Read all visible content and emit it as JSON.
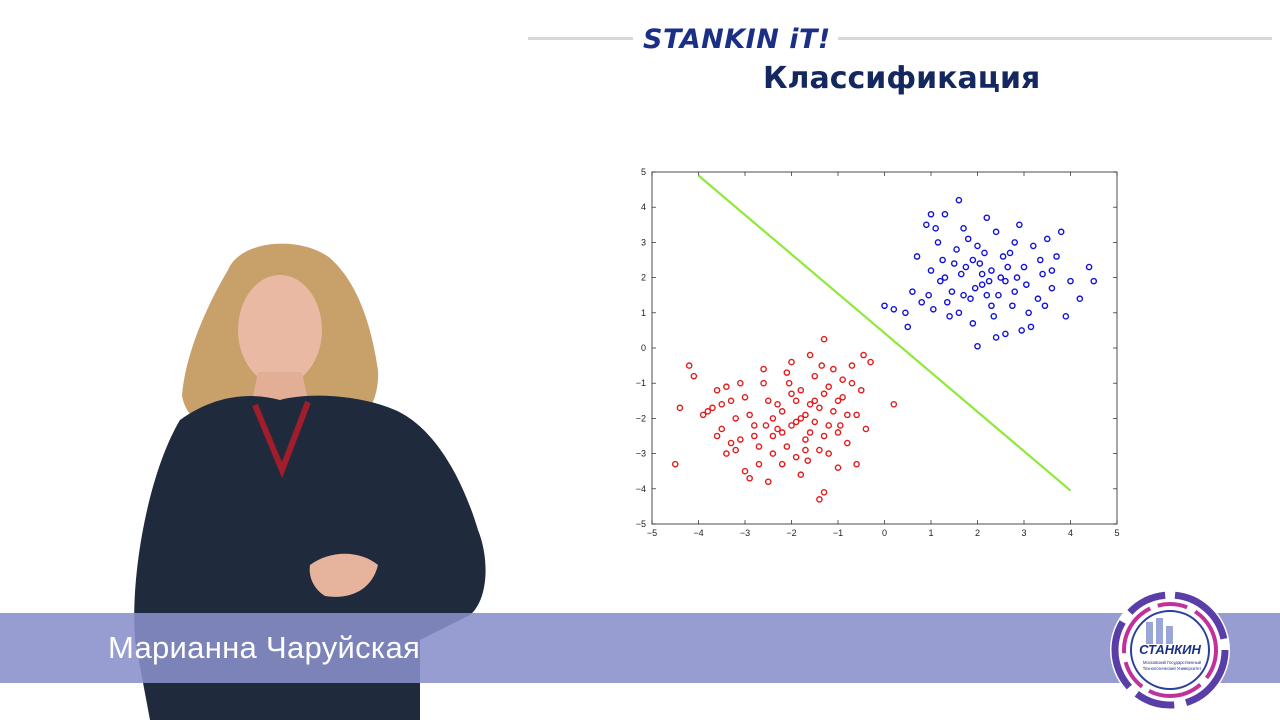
{
  "header": {
    "brand": "STANKIN iT!",
    "title": "Классификация"
  },
  "lower_third": {
    "speaker_name": "Марианна Чаруйская"
  },
  "logo": {
    "name": "СТАНКИН",
    "subtitle_lines": [
      "Московский Государственный",
      "Технологический Университет"
    ]
  },
  "colors": {
    "brand": "#1c2f86",
    "class_red": "#e41a1c",
    "class_blue": "#1010d8",
    "boundary": "#8fe83a",
    "band": "#8a8fcb"
  },
  "chart_data": {
    "type": "scatter",
    "title": "",
    "xlabel": "",
    "ylabel": "",
    "xlim": [
      -5,
      5
    ],
    "ylim": [
      -5,
      5
    ],
    "x_ticks": [
      -5,
      -4,
      -3,
      -2,
      -1,
      0,
      1,
      2,
      3,
      4,
      5
    ],
    "y_ticks": [
      -5,
      -4,
      -3,
      -2,
      -1,
      0,
      1,
      2,
      3,
      4,
      5
    ],
    "grid": false,
    "series": [
      {
        "color": "#e41a1c",
        "marker": "circle-open",
        "points": [
          [
            -4.2,
            -0.5
          ],
          [
            -4.1,
            -0.8
          ],
          [
            -4.4,
            -1.7
          ],
          [
            -4.5,
            -3.3
          ],
          [
            -3.9,
            -1.9
          ],
          [
            -3.8,
            -1.8
          ],
          [
            -3.7,
            -1.7
          ],
          [
            -3.6,
            -1.2
          ],
          [
            -3.5,
            -1.6
          ],
          [
            -3.4,
            -1.1
          ],
          [
            -3.3,
            -1.5
          ],
          [
            -3.2,
            -2.0
          ],
          [
            -3.1,
            -2.6
          ],
          [
            -3.0,
            -3.5
          ],
          [
            -2.9,
            -3.7
          ],
          [
            -2.7,
            -3.3
          ],
          [
            -2.5,
            -3.8
          ],
          [
            -2.4,
            -2.5
          ],
          [
            -2.3,
            -2.3
          ],
          [
            -2.2,
            -1.8
          ],
          [
            -2.1,
            -0.7
          ],
          [
            -2.0,
            -1.3
          ],
          [
            -1.9,
            -2.1
          ],
          [
            -1.8,
            -3.6
          ],
          [
            -1.7,
            -2.9
          ],
          [
            -1.6,
            -0.2
          ],
          [
            -1.5,
            -1.5
          ],
          [
            -1.4,
            -4.3
          ],
          [
            -1.3,
            -4.1
          ],
          [
            -1.2,
            -1.1
          ],
          [
            -1.1,
            -0.6
          ],
          [
            -1.0,
            -2.4
          ],
          [
            -0.9,
            -1.4
          ],
          [
            -0.8,
            -2.7
          ],
          [
            -0.7,
            -0.5
          ],
          [
            -0.6,
            -1.9
          ],
          [
            -0.5,
            -1.2
          ],
          [
            -0.4,
            -2.3
          ],
          [
            -0.3,
            -0.4
          ],
          [
            0.2,
            -1.6
          ],
          [
            -1.3,
            0.25
          ],
          [
            -2.8,
            -2.2
          ],
          [
            -3.0,
            -1.4
          ],
          [
            -2.6,
            -1.0
          ],
          [
            -2.3,
            -1.6
          ],
          [
            -2.1,
            -2.8
          ],
          [
            -1.9,
            -1.5
          ],
          [
            -1.7,
            -1.9
          ],
          [
            -1.6,
            -2.4
          ],
          [
            -1.5,
            -2.1
          ],
          [
            -1.4,
            -1.7
          ],
          [
            -1.3,
            -2.5
          ],
          [
            -1.2,
            -2.2
          ],
          [
            -1.1,
            -1.8
          ],
          [
            -2.4,
            -2.0
          ],
          [
            -2.2,
            -2.4
          ],
          [
            -2.0,
            -2.2
          ],
          [
            -1.8,
            -2.0
          ],
          [
            -1.6,
            -1.6
          ],
          [
            -1.4,
            -2.9
          ],
          [
            -2.5,
            -1.5
          ],
          [
            -2.7,
            -2.8
          ],
          [
            -3.3,
            -2.7
          ],
          [
            -3.5,
            -2.3
          ],
          [
            -2.9,
            -1.9
          ],
          [
            -1.0,
            -1.5
          ],
          [
            -0.8,
            -1.9
          ],
          [
            -1.7,
            -2.6
          ],
          [
            -1.9,
            -3.1
          ],
          [
            -2.2,
            -3.3
          ],
          [
            -3.4,
            -3.0
          ],
          [
            -3.6,
            -2.5
          ],
          [
            -1.2,
            -3.0
          ],
          [
            -1.0,
            -3.4
          ],
          [
            -0.6,
            -3.3
          ],
          [
            -0.7,
            -1.0
          ],
          [
            -2.6,
            -0.6
          ],
          [
            -3.1,
            -1.0
          ],
          [
            -2.0,
            -0.4
          ],
          [
            -1.5,
            -0.8
          ],
          [
            -0.9,
            -0.9
          ],
          [
            -2.8,
            -2.5
          ],
          [
            -2.4,
            -3.0
          ],
          [
            -1.8,
            -1.2
          ],
          [
            -1.3,
            -1.3
          ],
          [
            -0.95,
            -2.2
          ],
          [
            -1.65,
            -3.2
          ],
          [
            -2.05,
            -1.0
          ],
          [
            -3.2,
            -2.9
          ],
          [
            -2.55,
            -2.2
          ],
          [
            -1.35,
            -0.5
          ],
          [
            -0.45,
            -0.2
          ]
        ]
      },
      {
        "color": "#1010d8",
        "marker": "circle-open",
        "points": [
          [
            0,
            1.2
          ],
          [
            0.2,
            1.1
          ],
          [
            0.45,
            1.0
          ],
          [
            0.5,
            0.6
          ],
          [
            0.6,
            1.6
          ],
          [
            0.7,
            2.6
          ],
          [
            0.8,
            1.3
          ],
          [
            0.9,
            3.5
          ],
          [
            1.0,
            2.2
          ],
          [
            1.1,
            3.4
          ],
          [
            1.2,
            1.9
          ],
          [
            1.3,
            3.8
          ],
          [
            1.4,
            0.9
          ],
          [
            1.5,
            2.4
          ],
          [
            1.6,
            4.2
          ],
          [
            1.7,
            1.5
          ],
          [
            1.8,
            3.1
          ],
          [
            1.9,
            0.7
          ],
          [
            2.0,
            2.9
          ],
          [
            2.1,
            1.8
          ],
          [
            2.2,
            3.7
          ],
          [
            2.3,
            1.2
          ],
          [
            2.4,
            3.3
          ],
          [
            2.5,
            2.0
          ],
          [
            2.6,
            0.4
          ],
          [
            2.7,
            2.7
          ],
          [
            2.8,
            1.6
          ],
          [
            2.9,
            3.5
          ],
          [
            3.0,
            2.3
          ],
          [
            3.1,
            1.0
          ],
          [
            3.2,
            2.9
          ],
          [
            3.3,
            1.4
          ],
          [
            3.4,
            2.1
          ],
          [
            3.5,
            3.1
          ],
          [
            3.6,
            1.7
          ],
          [
            3.7,
            2.6
          ],
          [
            3.8,
            3.3
          ],
          [
            3.9,
            0.9
          ],
          [
            4.0,
            1.9
          ],
          [
            4.2,
            1.4
          ],
          [
            4.4,
            2.3
          ],
          [
            4.5,
            1.9
          ],
          [
            1.05,
            1.1
          ],
          [
            1.25,
            2.5
          ],
          [
            1.45,
            1.6
          ],
          [
            1.65,
            2.1
          ],
          [
            1.85,
            1.4
          ],
          [
            2.05,
            2.4
          ],
          [
            2.25,
            1.9
          ],
          [
            2.45,
            1.5
          ],
          [
            2.65,
            2.3
          ],
          [
            2.85,
            2.0
          ],
          [
            3.05,
            1.8
          ],
          [
            1.55,
            2.8
          ],
          [
            2.15,
            2.7
          ],
          [
            2.35,
            0.9
          ],
          [
            1.35,
            1.3
          ],
          [
            1.95,
            1.7
          ],
          [
            2.55,
            2.6
          ],
          [
            2.75,
            1.2
          ],
          [
            1.15,
            3.0
          ],
          [
            3.15,
            0.6
          ],
          [
            2.95,
            0.5
          ],
          [
            2.0,
            0.05
          ],
          [
            2.4,
            0.3
          ],
          [
            1.0,
            3.8
          ],
          [
            1.75,
            2.3
          ],
          [
            2.1,
            2.1
          ],
          [
            2.6,
            1.9
          ],
          [
            3.35,
            2.5
          ],
          [
            0.95,
            1.5
          ],
          [
            1.6,
            1.0
          ],
          [
            2.8,
            3.0
          ],
          [
            3.6,
            2.2
          ],
          [
            1.3,
            2.0
          ],
          [
            2.3,
            2.2
          ],
          [
            1.9,
            2.5
          ],
          [
            3.45,
            1.2
          ],
          [
            1.7,
            3.4
          ],
          [
            2.2,
            1.5
          ]
        ]
      }
    ],
    "decision_boundary": {
      "x": [
        -4,
        4
      ],
      "y": [
        4.9,
        -4.05
      ],
      "color": "#8fe83a"
    }
  }
}
